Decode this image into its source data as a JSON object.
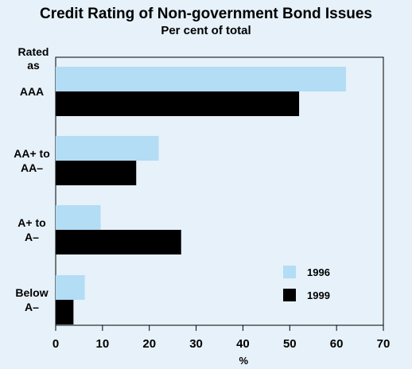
{
  "chart_data": {
    "type": "bar",
    "orientation": "horizontal",
    "title": "Credit Rating of Non-government Bond Issues",
    "subtitle": "Per cent of total",
    "xlabel": "%",
    "ylabel": "Rated as",
    "categories": [
      "AAA",
      "AA+ to AA–",
      "A+ to A–",
      "Below A–"
    ],
    "series": [
      {
        "name": "1996",
        "values": [
          62,
          22,
          9.6,
          6.2
        ],
        "color": "#b3dcf5"
      },
      {
        "name": "1999",
        "values": [
          52,
          17.2,
          26.8,
          3.8
        ],
        "color": "#000000"
      }
    ],
    "xlim": [
      0,
      70
    ],
    "xticks": [
      0,
      10,
      20,
      30,
      40,
      50,
      60,
      70
    ],
    "grid": false,
    "legend_position": "bottom-right",
    "background": "#e6f1f9"
  }
}
